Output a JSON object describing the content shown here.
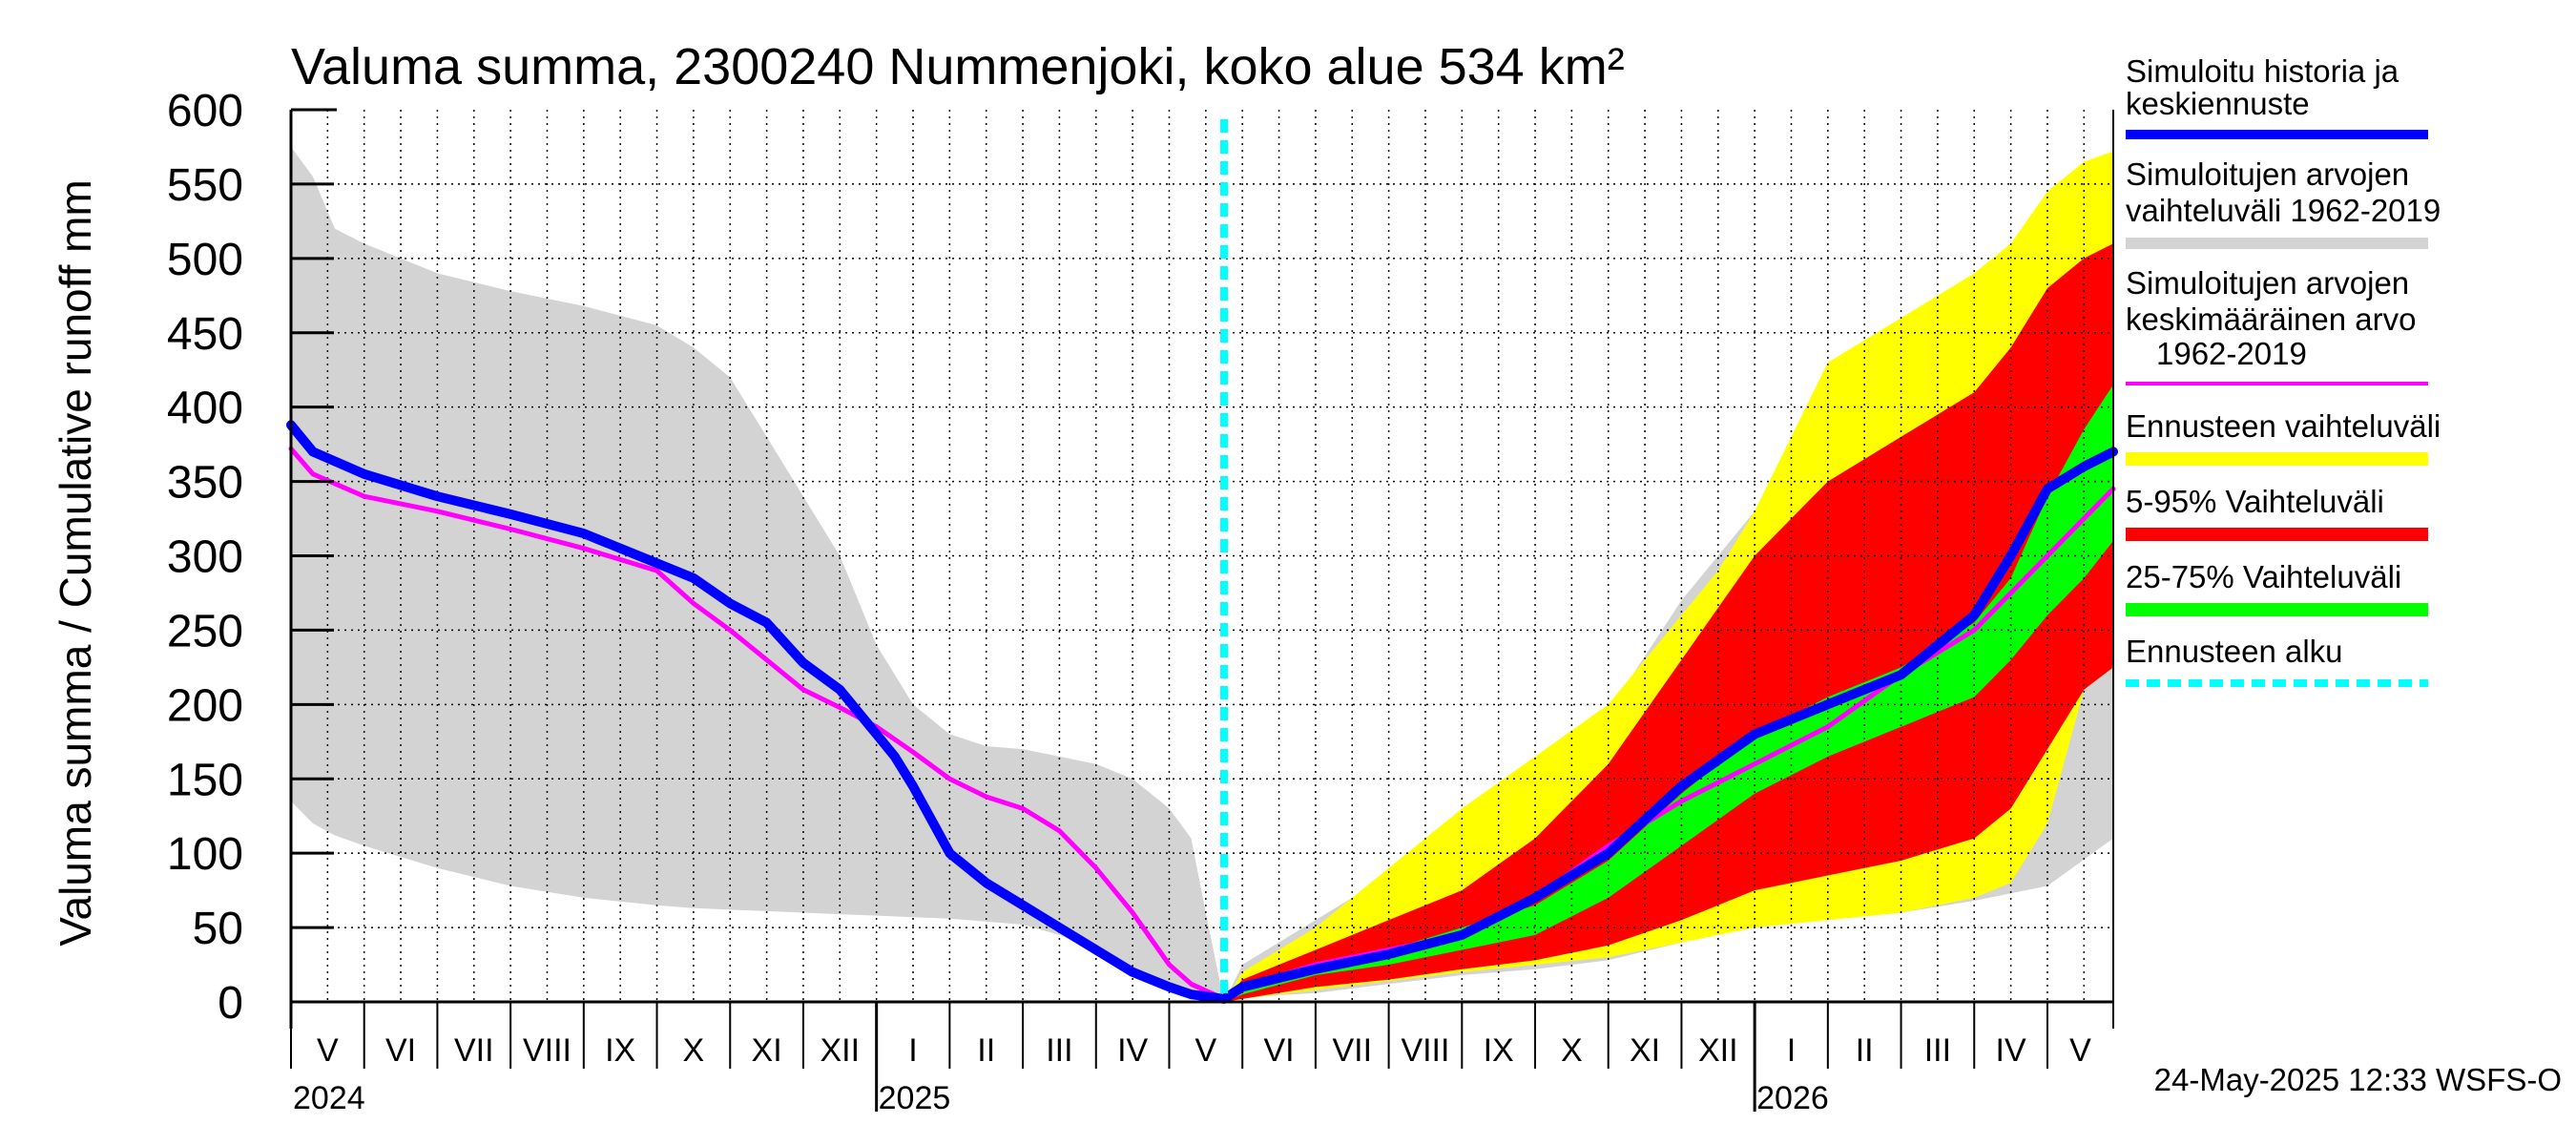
{
  "chart_data": {
    "type": "area",
    "title": "Valuma summa, 2300240 Nummenjoki, koko alue 534 km²",
    "ylabel": "Valuma summa / Cumulative runoff    mm",
    "ylim": [
      0,
      600
    ],
    "yticks": [
      "0",
      "50",
      "100",
      "150",
      "200",
      "250",
      "300",
      "350",
      "400",
      "450",
      "500",
      "550",
      "600"
    ],
    "x_unit": "months since 1 May 2024",
    "xlim": [
      0,
      24.9
    ],
    "forecast_start": 12.75,
    "months": [
      {
        "label": "V",
        "start": 0
      },
      {
        "label": "VI",
        "start": 1
      },
      {
        "label": "VII",
        "start": 2
      },
      {
        "label": "VIII",
        "start": 3
      },
      {
        "label": "IX",
        "start": 4
      },
      {
        "label": "X",
        "start": 5
      },
      {
        "label": "XI",
        "start": 6
      },
      {
        "label": "XII",
        "start": 7
      },
      {
        "label": "I",
        "start": 8
      },
      {
        "label": "II",
        "start": 9
      },
      {
        "label": "III",
        "start": 10
      },
      {
        "label": "IV",
        "start": 11
      },
      {
        "label": "V",
        "start": 12
      },
      {
        "label": "VI",
        "start": 13
      },
      {
        "label": "VII",
        "start": 14
      },
      {
        "label": "VIII",
        "start": 15
      },
      {
        "label": "IX",
        "start": 16
      },
      {
        "label": "X",
        "start": 17
      },
      {
        "label": "XI",
        "start": 18
      },
      {
        "label": "XII",
        "start": 19
      },
      {
        "label": "I",
        "start": 20
      },
      {
        "label": "II",
        "start": 21
      },
      {
        "label": "III",
        "start": 22
      },
      {
        "label": "IV",
        "start": 23
      },
      {
        "label": "V",
        "start": 24
      }
    ],
    "years": [
      {
        "label": "2024",
        "start": 0
      },
      {
        "label": "2025",
        "start": 8
      },
      {
        "label": "2026",
        "start": 20
      }
    ],
    "series": [
      {
        "name": "Simuloitujen arvojen vaihteluväli 1962-2019 (history)",
        "kind": "band",
        "color": "#d3d3d3",
        "x": [
          0,
          0.3,
          0.6,
          1,
          2,
          3,
          4,
          5,
          5.5,
          6,
          6.5,
          7,
          7.5,
          8,
          8.5,
          9,
          9.5,
          10,
          10.5,
          11,
          11.5,
          12,
          12.3,
          12.5,
          12.75
        ],
        "lower": [
          135,
          120,
          112,
          105,
          90,
          78,
          70,
          65,
          63,
          62,
          61,
          60,
          59,
          58,
          57,
          56,
          54,
          52,
          45,
          35,
          20,
          10,
          5,
          2,
          0
        ],
        "upper": [
          575,
          555,
          520,
          510,
          490,
          478,
          468,
          455,
          440,
          420,
          380,
          340,
          300,
          240,
          200,
          180,
          172,
          170,
          165,
          160,
          150,
          130,
          110,
          60,
          0
        ]
      },
      {
        "name": "Simuloitujen arvojen vaihteluväli 1962-2019 (forecast)",
        "kind": "band",
        "color": "#d3d3d3",
        "x": [
          12.75,
          13,
          14,
          15,
          16,
          17,
          18,
          19,
          20,
          21,
          22,
          23,
          24,
          24.9
        ],
        "lower": [
          0,
          3,
          6,
          12,
          18,
          22,
          28,
          40,
          52,
          58,
          60,
          68,
          78,
          110
        ],
        "upper": [
          0,
          25,
          55,
          85,
          120,
          155,
          195,
          270,
          330,
          405,
          430,
          460,
          500,
          515
        ]
      },
      {
        "name": "Ennusteen vaihteluväli",
        "kind": "band",
        "color": "#ffff00",
        "x": [
          12.75,
          13,
          14,
          15,
          16,
          17,
          18,
          19,
          19.5,
          20,
          21,
          22,
          23,
          23.5,
          24,
          24.5,
          24.9
        ],
        "lower": [
          0,
          2,
          8,
          14,
          20,
          25,
          30,
          40,
          45,
          50,
          55,
          60,
          70,
          80,
          120,
          210,
          225
        ],
        "upper": [
          0,
          20,
          50,
          90,
          130,
          165,
          200,
          260,
          290,
          330,
          430,
          460,
          490,
          510,
          545,
          565,
          572
        ]
      },
      {
        "name": "5-95% Vaihteluväli",
        "kind": "band",
        "color": "#ff0000",
        "x": [
          12.75,
          13,
          14,
          15,
          16,
          17,
          18,
          19,
          20,
          21,
          22,
          23,
          23.5,
          24,
          24.5,
          24.9
        ],
        "lower": [
          0,
          2,
          10,
          15,
          22,
          28,
          38,
          55,
          75,
          85,
          95,
          110,
          130,
          170,
          210,
          225
        ],
        "upper": [
          0,
          15,
          35,
          55,
          75,
          110,
          160,
          230,
          300,
          350,
          380,
          410,
          440,
          480,
          500,
          510
        ]
      },
      {
        "name": "25-75% Vaihteluväli",
        "kind": "band",
        "color": "#00ff00",
        "x": [
          12.75,
          13,
          14,
          15,
          16,
          17,
          18,
          19,
          20,
          21,
          22,
          23,
          23.5,
          24,
          24.5,
          24.9
        ],
        "lower": [
          0,
          5,
          18,
          25,
          35,
          45,
          70,
          105,
          140,
          165,
          185,
          205,
          230,
          260,
          285,
          310
        ],
        "upper": [
          0,
          10,
          25,
          35,
          50,
          65,
          95,
          140,
          180,
          205,
          225,
          255,
          285,
          340,
          385,
          415
        ]
      },
      {
        "name": "Simuloitujen arvojen keskimääräinen arvo 1962-2019",
        "kind": "line",
        "color": "#ff00ff",
        "width": 5,
        "x": [
          0,
          0.3,
          1,
          2,
          3,
          4,
          5,
          5.5,
          6,
          6.5,
          7,
          7.5,
          8,
          8.5,
          9,
          9.5,
          10,
          10.5,
          11,
          11.5,
          12,
          12.3,
          12.75,
          13,
          14,
          15,
          16,
          17,
          18,
          19,
          20,
          21,
          22,
          23,
          23.5,
          24,
          24.5,
          24.9
        ],
        "y": [
          372,
          355,
          340,
          330,
          318,
          305,
          290,
          268,
          250,
          230,
          210,
          198,
          185,
          168,
          150,
          138,
          130,
          115,
          90,
          60,
          25,
          12,
          2,
          10,
          25,
          35,
          45,
          70,
          105,
          135,
          160,
          185,
          220,
          250,
          275,
          300,
          325,
          345
        ]
      },
      {
        "name": "Simuloitu historia ja keskiennuste",
        "kind": "line",
        "color": "#0000ff",
        "width": 10,
        "x": [
          0,
          0.3,
          1,
          2,
          3,
          4,
          5,
          5.5,
          6,
          6.5,
          7,
          7.5,
          8,
          8.25,
          8.5,
          9,
          9.5,
          10,
          10.5,
          11,
          11.5,
          12,
          12.3,
          12.75,
          13,
          14,
          15,
          16,
          17,
          18,
          19,
          20,
          21,
          22,
          23,
          23.5,
          24,
          24.5,
          24.9
        ],
        "y": [
          388,
          370,
          355,
          340,
          328,
          315,
          295,
          285,
          268,
          255,
          228,
          210,
          180,
          165,
          145,
          100,
          80,
          65,
          50,
          35,
          20,
          10,
          5,
          2,
          10,
          22,
          32,
          45,
          70,
          100,
          145,
          180,
          200,
          220,
          260,
          300,
          345,
          360,
          370
        ]
      },
      {
        "name": "Ennusteen alku",
        "kind": "vline",
        "color": "#00ffff",
        "x": 12.75
      }
    ]
  },
  "legend": {
    "sim_history": [
      "Simuloitu historia ja",
      "keskiennuste"
    ],
    "sim_range": [
      "Simuloitujen arvojen",
      "vaihteluväli 1962-2019"
    ],
    "sim_mean": [
      "Simuloitujen arvojen",
      "keskimääräinen arvo",
      "1962-2019"
    ],
    "fc_range": "Ennusteen vaihteluväli",
    "p5_95": "5-95% Vaihteluväli",
    "p25_75": "25-75% Vaihteluväli",
    "fc_start": "Ennusteen alku",
    "colors": {
      "sim_history": "#0000ff",
      "sim_range": "#d3d3d3",
      "sim_mean": "#ff00ff",
      "fc_range": "#ffff00",
      "p5_95": "#ff0000",
      "p25_75": "#00ff00",
      "fc_start": "#00ffff"
    }
  },
  "footer": "24-May-2025 12:33 WSFS-O"
}
